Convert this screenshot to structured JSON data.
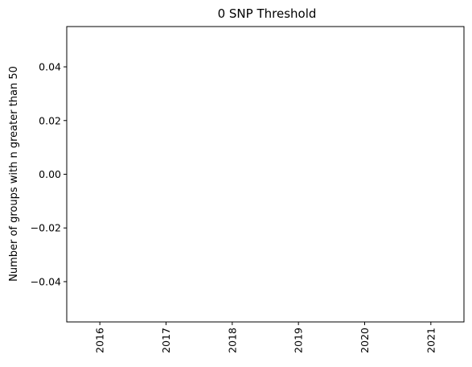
{
  "chart_data": {
    "type": "line",
    "title": "0 SNP Threshold",
    "xlabel": "",
    "ylabel": "Number of groups with n greater than 50",
    "x": [
      "2016",
      "2017",
      "2018",
      "2019",
      "2020",
      "2021"
    ],
    "series": [
      {
        "values": [
          0,
          0,
          0,
          0,
          0,
          0
        ]
      }
    ],
    "xlim": [
      2015.5,
      2021.5
    ],
    "ylim": [
      -0.055,
      0.055
    ],
    "yticks": [
      -0.04,
      -0.02,
      0.0,
      0.02,
      0.04
    ],
    "ytick_labels": [
      "−0.04",
      "−0.02",
      "0.00",
      "0.02",
      "0.04"
    ],
    "grid": false,
    "legend": "none",
    "colors": {
      "frame": "#000000",
      "background": "#ffffff"
    }
  }
}
